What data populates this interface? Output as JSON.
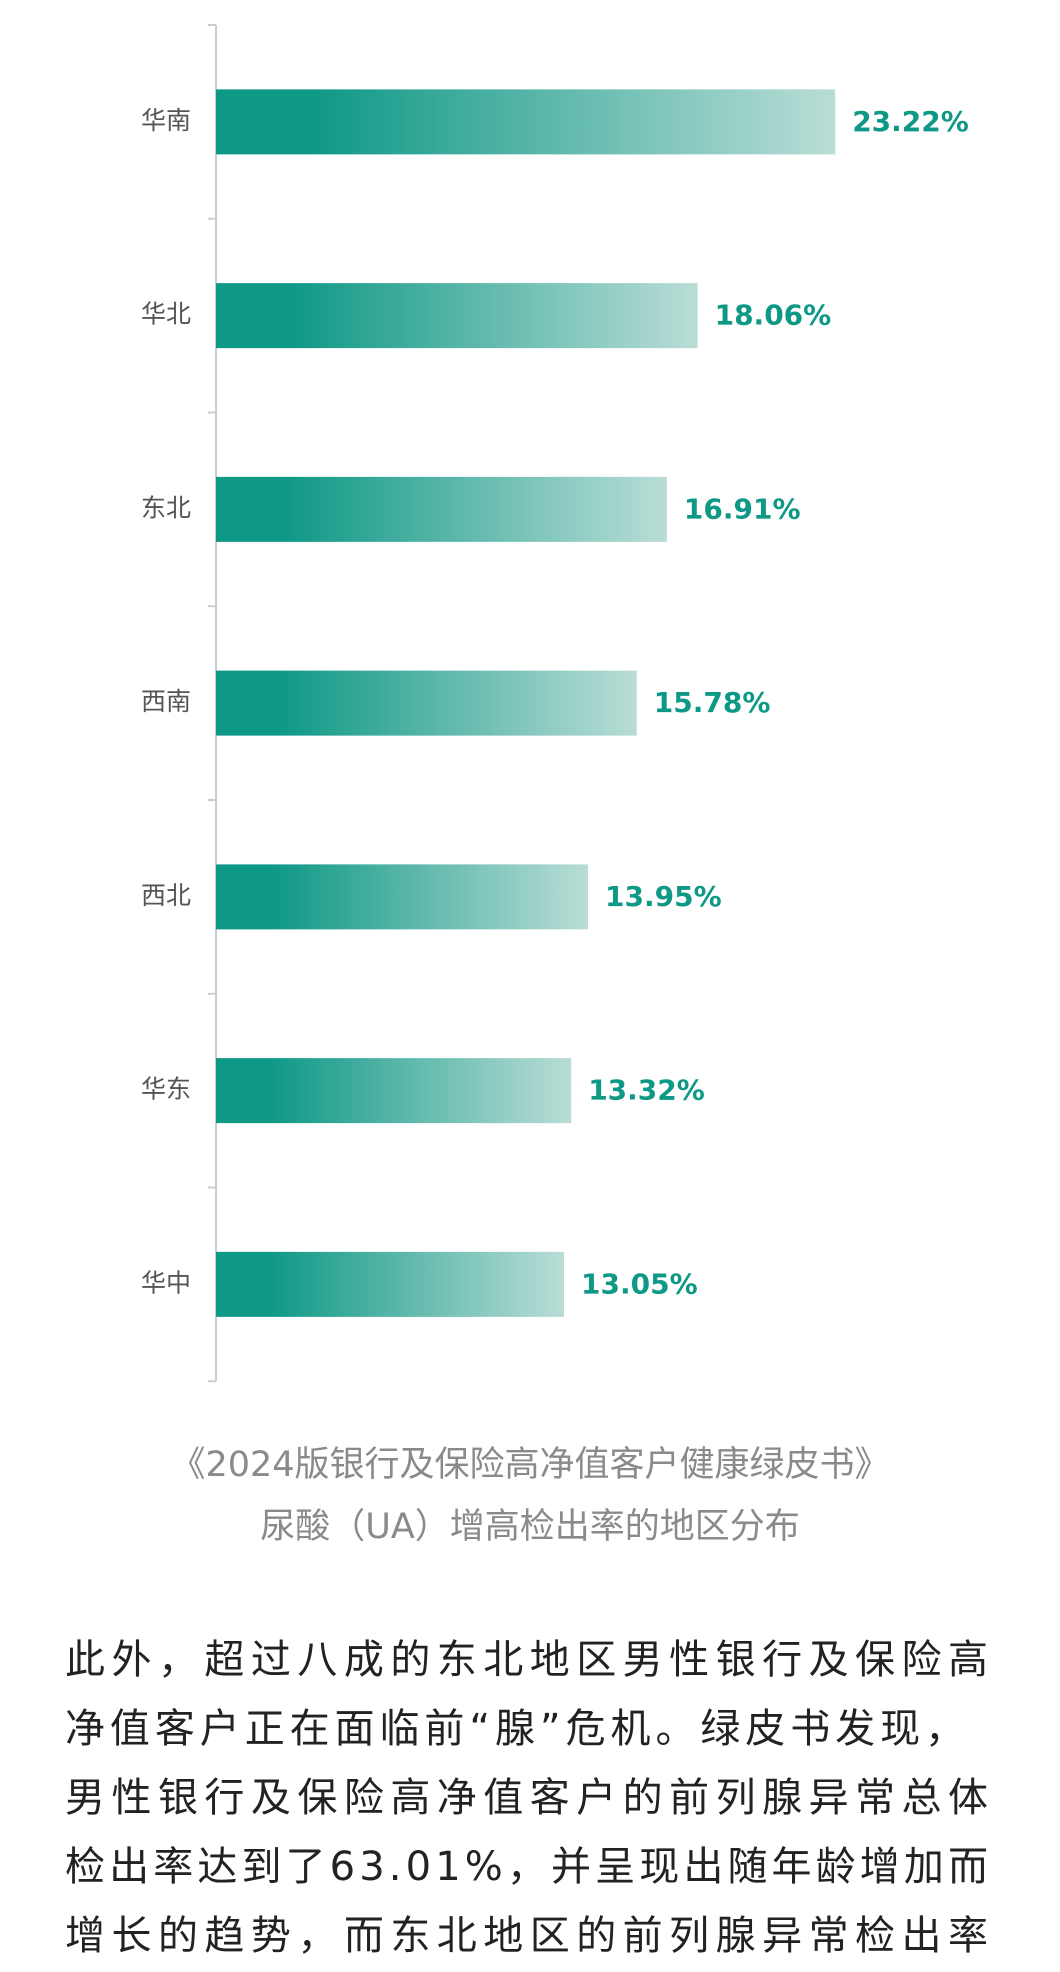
{
  "chart_data": {
    "type": "bar",
    "orientation": "horizontal",
    "categories": [
      "华南",
      "华北",
      "东北",
      "西南",
      "西北",
      "华东",
      "华中"
    ],
    "values": [
      23.22,
      18.06,
      16.91,
      15.78,
      13.95,
      13.32,
      13.05
    ],
    "value_labels": [
      "23.22%",
      "18.06%",
      "16.91%",
      "15.78%",
      "13.95%",
      "13.32%",
      "13.05%"
    ],
    "color": "#0e9886",
    "xlim": [
      0,
      30
    ]
  },
  "caption": [
    "《2024版银行及保险高净值客户健康绿皮书》",
    "尿酸（UA）增高检出率的地区分布"
  ],
  "paragraph": [
    "此外，超过八成的东北地区男性银行及保险高",
    "净值客户正在面临前“腺”危机。绿皮书发现，",
    "男性银行及保险高净值客户的前列腺异常总体",
    "检出率达到了63.01%，并呈现出随年龄增加而",
    "增长的趋势，而东北地区的前列腺异常检出率"
  ]
}
